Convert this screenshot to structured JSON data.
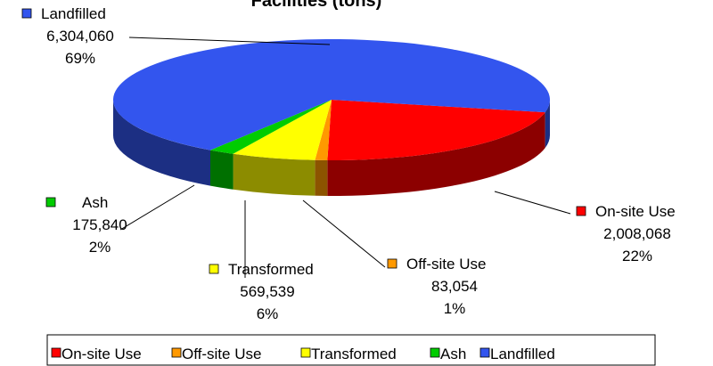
{
  "chart_data": {
    "type": "pie3d",
    "title": "Facilities (tons)",
    "categories": [
      "On-site Use",
      "Off-site Use",
      "Transformed",
      "Ash",
      "Landfilled"
    ],
    "values": [
      2008068,
      83054,
      569539,
      175840,
      6304060
    ],
    "value_labels": [
      "2,008,068",
      "83,054",
      "569,539",
      "175,840",
      "6,304,060"
    ],
    "percentage_labels": [
      "22%",
      "1%",
      "6%",
      "2%",
      "69%"
    ],
    "colors": [
      "#ff0000",
      "#ff9900",
      "#ffff00",
      "#00cc00",
      "#3355ee"
    ],
    "legend": "bottom"
  }
}
